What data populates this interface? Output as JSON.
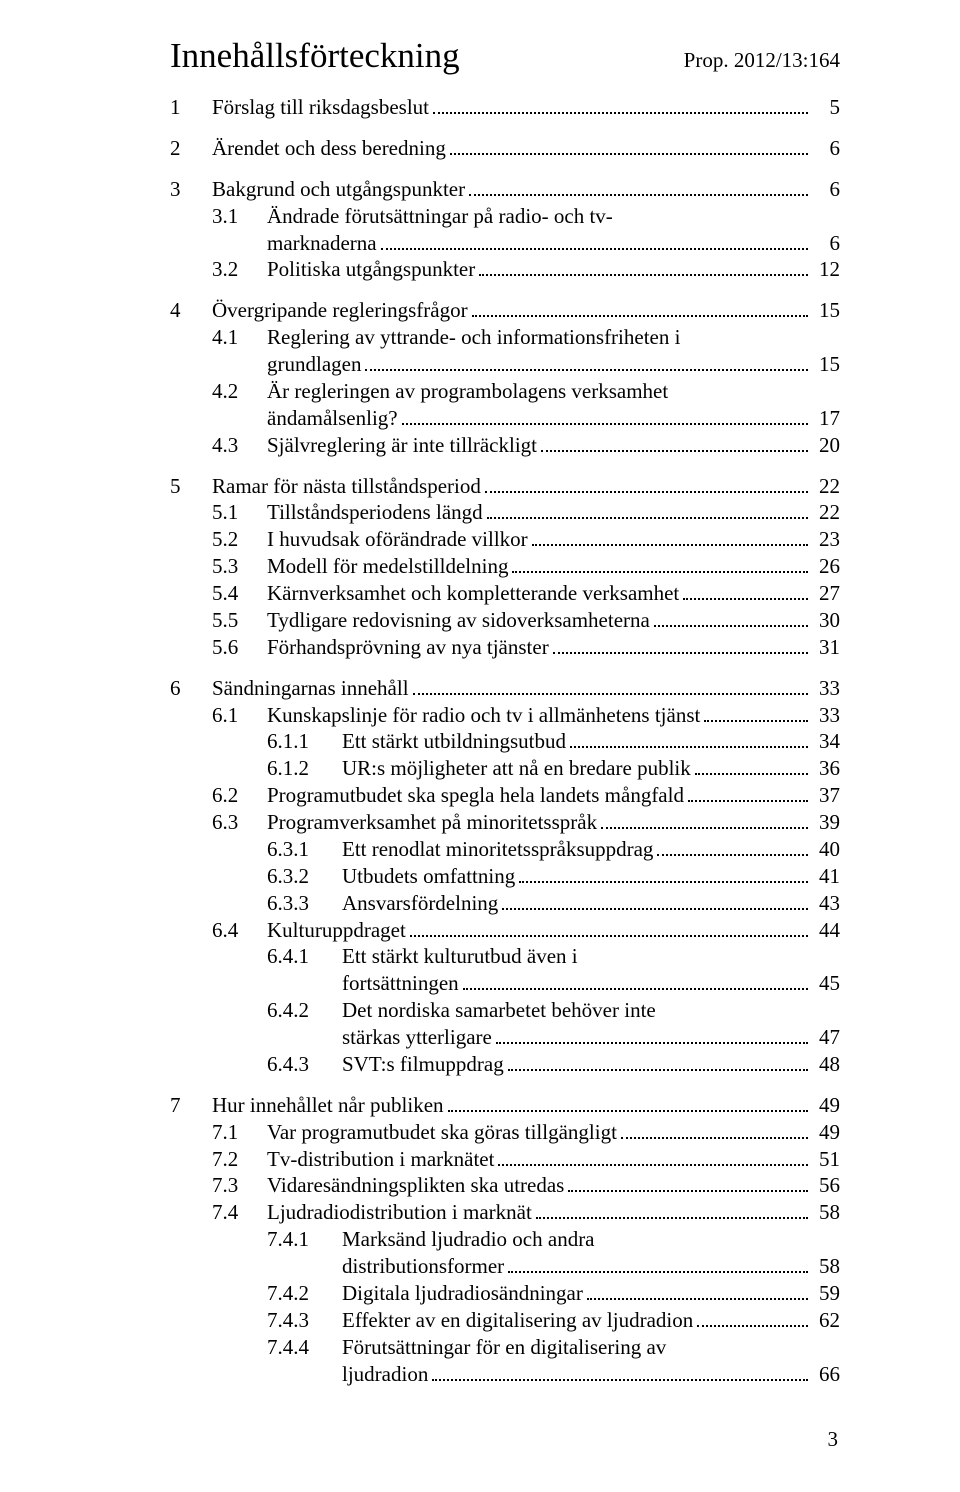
{
  "header": {
    "title": "Innehållsförteckning",
    "reference": "Prop. 2012/13:164"
  },
  "entries": [
    {
      "level": 1,
      "num": "1",
      "label": "Förslag till riksdagsbeslut",
      "page": "5",
      "gapBefore": false
    },
    {
      "level": 1,
      "num": "2",
      "label": "Ärendet och dess beredning",
      "page": "6",
      "gapBefore": true
    },
    {
      "level": 1,
      "num": "3",
      "label": "Bakgrund och utgångspunkter",
      "page": "6",
      "gapBefore": true
    },
    {
      "level": 2,
      "num": "3.1",
      "label": "Ändrade förutsättningar på radio- och tv-",
      "cont": "marknaderna",
      "page": "6"
    },
    {
      "level": 2,
      "num": "3.2",
      "label": "Politiska utgångspunkter",
      "page": "12"
    },
    {
      "level": 1,
      "num": "4",
      "label": "Övergripande regleringsfrågor",
      "page": "15",
      "gapBefore": true
    },
    {
      "level": 2,
      "num": "4.1",
      "label": "Reglering av yttrande- och informationsfriheten i",
      "cont": "grundlagen",
      "page": "15"
    },
    {
      "level": 2,
      "num": "4.2",
      "label": "Är regleringen av programbolagens verksamhet",
      "cont": "ändamålsenlig?",
      "page": "17"
    },
    {
      "level": 2,
      "num": "4.3",
      "label": "Självreglering är inte tillräckligt",
      "page": "20"
    },
    {
      "level": 1,
      "num": "5",
      "label": "Ramar för nästa tillståndsperiod",
      "page": "22",
      "gapBefore": true
    },
    {
      "level": 2,
      "num": "5.1",
      "label": "Tillståndsperiodens längd",
      "page": "22"
    },
    {
      "level": 2,
      "num": "5.2",
      "label": "I huvudsak oförändrade villkor",
      "page": "23"
    },
    {
      "level": 2,
      "num": "5.3",
      "label": "Modell för medelstilldelning",
      "page": "26"
    },
    {
      "level": 2,
      "num": "5.4",
      "label": "Kärnverksamhet och kompletterande verksamhet",
      "page": "27"
    },
    {
      "level": 2,
      "num": "5.5",
      "label": "Tydligare redovisning av sidoverksamheterna",
      "page": "30"
    },
    {
      "level": 2,
      "num": "5.6",
      "label": "Förhandsprövning av nya tjänster",
      "page": "31"
    },
    {
      "level": 1,
      "num": "6",
      "label": "Sändningarnas innehåll",
      "page": "33",
      "gapBefore": true
    },
    {
      "level": 2,
      "num": "6.1",
      "label": "Kunskapslinje för radio och tv i allmänhetens tjänst",
      "page": "33"
    },
    {
      "level": 3,
      "num": "6.1.1",
      "label": "Ett stärkt utbildningsutbud",
      "page": "34"
    },
    {
      "level": 3,
      "num": "6.1.2",
      "label": "UR:s möjligheter att nå en bredare publik",
      "page": "36"
    },
    {
      "level": 2,
      "num": "6.2",
      "label": "Programutbudet ska spegla hela landets mångfald",
      "page": "37"
    },
    {
      "level": 2,
      "num": "6.3",
      "label": "Programverksamhet på minoritetsspråk",
      "page": "39"
    },
    {
      "level": 3,
      "num": "6.3.1",
      "label": "Ett renodlat minoritetsspråksuppdrag",
      "page": "40"
    },
    {
      "level": 3,
      "num": "6.3.2",
      "label": "Utbudets omfattning",
      "page": "41"
    },
    {
      "level": 3,
      "num": "6.3.3",
      "label": "Ansvarsfördelning",
      "page": "43"
    },
    {
      "level": 2,
      "num": "6.4",
      "label": "Kulturuppdraget",
      "page": "44"
    },
    {
      "level": 3,
      "num": "6.4.1",
      "label": "Ett stärkt kulturutbud även i",
      "cont": "fortsättningen",
      "page": "45"
    },
    {
      "level": 3,
      "num": "6.4.2",
      "label": "Det nordiska samarbetet behöver inte",
      "cont": "stärkas ytterligare",
      "page": "47"
    },
    {
      "level": 3,
      "num": "6.4.3",
      "label": "SVT:s filmuppdrag",
      "page": "48"
    },
    {
      "level": 1,
      "num": "7",
      "label": "Hur innehållet når publiken",
      "page": "49",
      "gapBefore": true
    },
    {
      "level": 2,
      "num": "7.1",
      "label": "Var programutbudet ska göras tillgängligt",
      "page": "49"
    },
    {
      "level": 2,
      "num": "7.2",
      "label": "Tv-distribution i marknätet",
      "page": "51"
    },
    {
      "level": 2,
      "num": "7.3",
      "label": "Vidaresändningsplikten ska utredas",
      "page": "56"
    },
    {
      "level": 2,
      "num": "7.4",
      "label": "Ljudradiodistribution i marknät",
      "page": "58"
    },
    {
      "level": 3,
      "num": "7.4.1",
      "label": "Marksänd ljudradio och andra",
      "cont": "distributionsformer",
      "page": "58"
    },
    {
      "level": 3,
      "num": "7.4.2",
      "label": "Digitala ljudradiosändningar",
      "page": "59"
    },
    {
      "level": 3,
      "num": "7.4.3",
      "label": "Effekter av en digitalisering av ljudradion",
      "page": "62"
    },
    {
      "level": 3,
      "num": "7.4.4",
      "label": "Förutsättningar för en digitalisering av",
      "cont": "ljudradion",
      "page": "66"
    }
  ],
  "footerPage": "3"
}
